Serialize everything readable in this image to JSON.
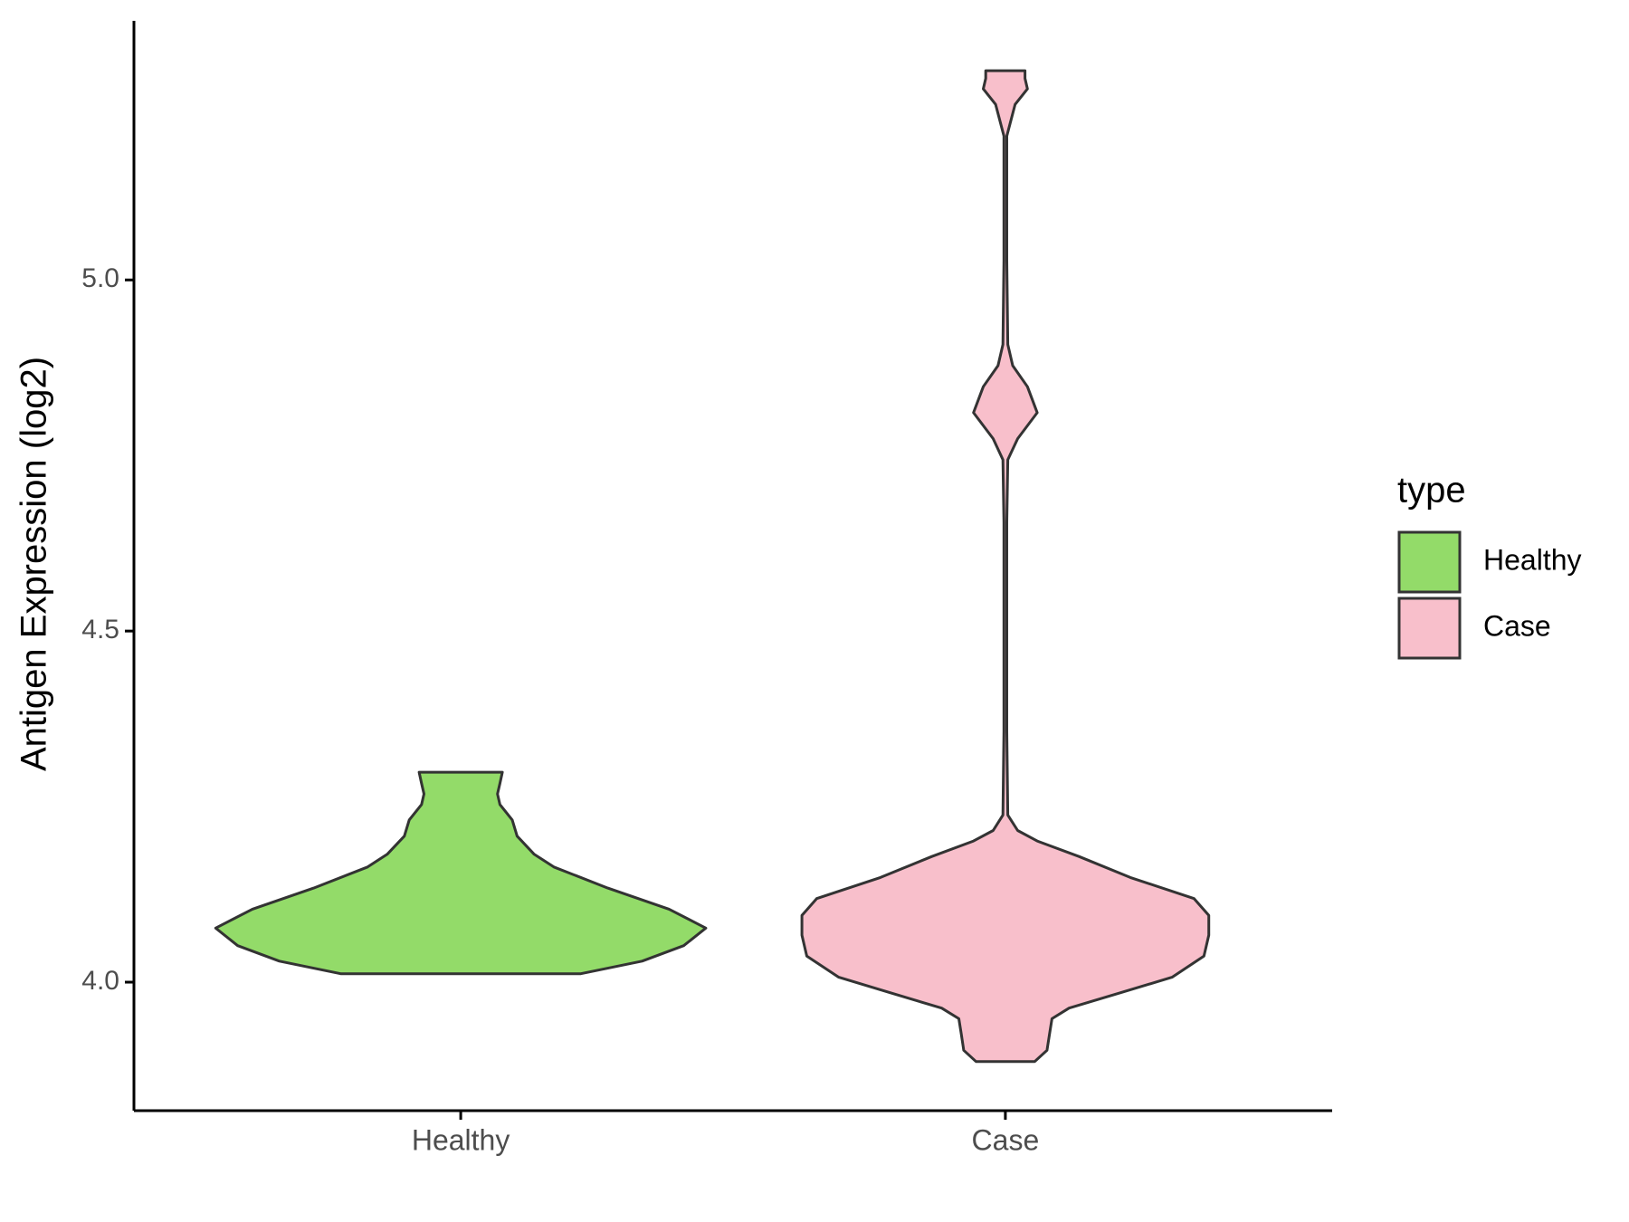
{
  "chart_data": {
    "type": "violin",
    "y_label": "Antigen Expression (log2)",
    "categories": [
      "Healthy",
      "Case"
    ],
    "legend_title": "type",
    "legend": "right",
    "ylim": [
      3.817,
      5.369
    ],
    "yticks": [
      {
        "value": 4,
        "label": "4.0"
      },
      4.5,
      {
        "value": 5,
        "label": "5.0"
      }
    ],
    "grid": false,
    "series": [
      {
        "name": "Healthy",
        "color": "#93DB69",
        "y": [
          4.012,
          4.03,
          4.052,
          4.077,
          4.104,
          4.134,
          4.164,
          4.182,
          4.208,
          4.231,
          4.253,
          4.268,
          4.283,
          4.299
        ],
        "density": [
          0.49,
          0.74,
          0.91,
          1.0,
          0.85,
          0.6,
          0.38,
          0.3,
          0.23,
          0.21,
          0.16,
          0.15,
          0.16,
          0.17
        ]
      },
      {
        "name": "Case",
        "color": "#F8BFCB",
        "y": [
          3.887,
          3.903,
          3.926,
          3.948,
          3.963,
          3.985,
          4.007,
          4.037,
          4.067,
          4.095,
          4.119,
          4.149,
          4.179,
          4.201,
          4.216,
          4.238,
          4.357,
          4.655,
          4.744,
          4.774,
          4.811,
          4.848,
          4.878,
          4.908,
          5.027,
          5.205,
          5.25,
          5.272,
          5.287,
          5.298
        ],
        "density": [
          0.12,
          0.17,
          0.18,
          0.19,
          0.26,
          0.47,
          0.68,
          0.81,
          0.83,
          0.83,
          0.77,
          0.51,
          0.3,
          0.13,
          0.05,
          0.01,
          0.006,
          0.006,
          0.01,
          0.05,
          0.13,
          0.09,
          0.03,
          0.01,
          0.006,
          0.006,
          0.04,
          0.09,
          0.08,
          0.08
        ]
      }
    ]
  }
}
